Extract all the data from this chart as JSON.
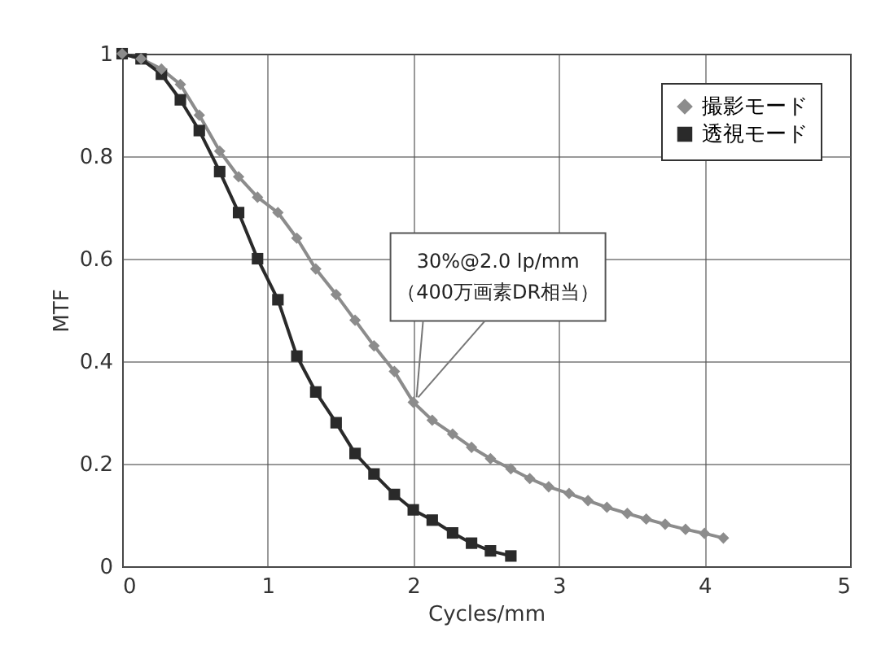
{
  "chart_data": {
    "type": "line",
    "xlabel": "Cycles/mm",
    "ylabel": "MTF",
    "xlim": [
      0,
      5
    ],
    "ylim": [
      0,
      1
    ],
    "xticks": [
      0,
      1,
      2,
      3,
      4,
      5
    ],
    "yticks": [
      0,
      0.2,
      0.4,
      0.6,
      0.8,
      1
    ],
    "grid": true,
    "legend": "top right",
    "line_style": "solid",
    "series": [
      {
        "name": "撮影モード",
        "color": "#8c8c8c",
        "marker": "diamond",
        "x": [
          0,
          0.13,
          0.27,
          0.4,
          0.53,
          0.67,
          0.8,
          0.93,
          1.07,
          1.2,
          1.33,
          1.47,
          1.6,
          1.73,
          1.87,
          2,
          2.13,
          2.27,
          2.4,
          2.53,
          2.67,
          2.8,
          2.93,
          3.07,
          3.2,
          3.33,
          3.47,
          3.6,
          3.73,
          3.87,
          4,
          4.13
        ],
        "values": [
          1,
          0.99,
          0.97,
          0.94,
          0.88,
          0.81,
          0.76,
          0.72,
          0.69,
          0.64,
          0.58,
          0.53,
          0.48,
          0.43,
          0.38,
          0.32,
          0.285,
          0.258,
          0.232,
          0.21,
          0.19,
          0.171,
          0.155,
          0.142,
          0.128,
          0.115,
          0.103,
          0.092,
          0.082,
          0.072,
          0.064,
          0.055
        ]
      },
      {
        "name": "透視モード",
        "color": "#2a2a2a",
        "marker": "square",
        "x": [
          0,
          0.13,
          0.27,
          0.4,
          0.53,
          0.67,
          0.8,
          0.93,
          1.07,
          1.2,
          1.33,
          1.47,
          1.6,
          1.73,
          1.87,
          2,
          2.13,
          2.27,
          2.4,
          2.53,
          2.67
        ],
        "values": [
          1,
          0.99,
          0.96,
          0.91,
          0.85,
          0.77,
          0.69,
          0.6,
          0.52,
          0.41,
          0.34,
          0.28,
          0.22,
          0.18,
          0.14,
          0.11,
          0.09,
          0.065,
          0.045,
          0.03,
          0.02
        ]
      }
    ],
    "annotations": [
      {
        "text": "30%@2.0 lp/mm\n（400万画素DR相当）",
        "x": 2,
        "y": 0.32
      }
    ]
  }
}
